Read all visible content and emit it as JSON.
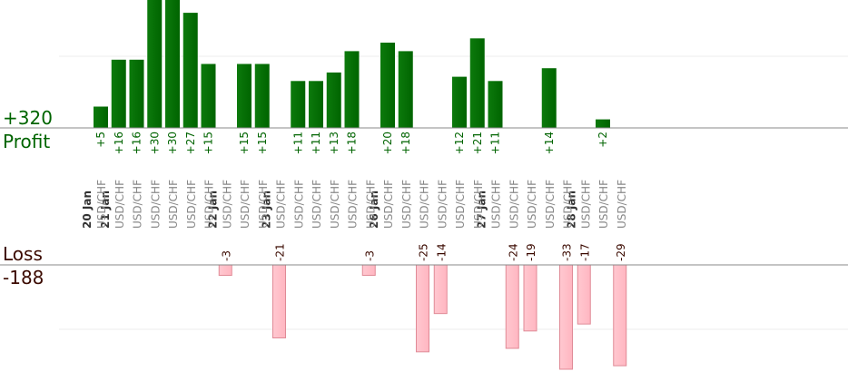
{
  "chart_data": {
    "type": "bar",
    "title": "",
    "profit_label": "Profit",
    "loss_label": "Loss",
    "profit_total": "+320",
    "loss_total": "-188",
    "profit_ylim": [
      0,
      30
    ],
    "loss_ylim": [
      0,
      30
    ],
    "grid": true,
    "dates": [
      {
        "label": "20 Jan",
        "start": 0
      },
      {
        "label": "21 Jan",
        "start": 1
      },
      {
        "label": "22 Jan",
        "start": 7
      },
      {
        "label": "23 Jan",
        "start": 10
      },
      {
        "label": "26 Jan",
        "start": 16
      },
      {
        "label": "27 Jan",
        "start": 22
      },
      {
        "label": "28 Jan",
        "start": 27
      }
    ],
    "trades": [
      {
        "symbol": "USD/CHF",
        "value": 5
      },
      {
        "symbol": "USD/CHF",
        "value": 16
      },
      {
        "symbol": "USD/CHF",
        "value": 16
      },
      {
        "symbol": "USD/CHF",
        "value": 30
      },
      {
        "symbol": "USD/CHF",
        "value": 30
      },
      {
        "symbol": "USD/CHF",
        "value": 27
      },
      {
        "symbol": "USD/CHF",
        "value": 15
      },
      {
        "symbol": "USD/CHF",
        "value": -3
      },
      {
        "symbol": "USD/CHF",
        "value": 15
      },
      {
        "symbol": "USD/CHF",
        "value": 15
      },
      {
        "symbol": "USD/CHF",
        "value": -21
      },
      {
        "symbol": "USD/CHF",
        "value": 11
      },
      {
        "symbol": "USD/CHF",
        "value": 11
      },
      {
        "symbol": "USD/CHF",
        "value": 13
      },
      {
        "symbol": "USD/CHF",
        "value": 18
      },
      {
        "symbol": "USD/CHF",
        "value": -3
      },
      {
        "symbol": "USD/CHF",
        "value": 20
      },
      {
        "symbol": "USD/CHF",
        "value": 18
      },
      {
        "symbol": "USD/CHF",
        "value": -25
      },
      {
        "symbol": "USD/CHF",
        "value": -14
      },
      {
        "symbol": "USD/CHF",
        "value": 12
      },
      {
        "symbol": "USD/CHF",
        "value": 21
      },
      {
        "symbol": "USD/CHF",
        "value": 11
      },
      {
        "symbol": "USD/CHF",
        "value": -24
      },
      {
        "symbol": "USD/CHF",
        "value": -19
      },
      {
        "symbol": "USD/CHF",
        "value": 14
      },
      {
        "symbol": "USD/CHF",
        "value": -33
      },
      {
        "symbol": "USD/CHF",
        "value": -17
      },
      {
        "symbol": "USD/CHF",
        "value": 2
      },
      {
        "symbol": "USD/CHF",
        "value": -29
      }
    ]
  },
  "colors": {
    "profit_bar": "#006400",
    "profit_text": "#006400",
    "loss_bar": "#ffb6c1",
    "loss_border": "#e08a96",
    "loss_text": "#3b0a00",
    "axis": "#888888",
    "grid": "#eeeeee",
    "date_text": "#333333",
    "symbol_text": "#888888"
  }
}
